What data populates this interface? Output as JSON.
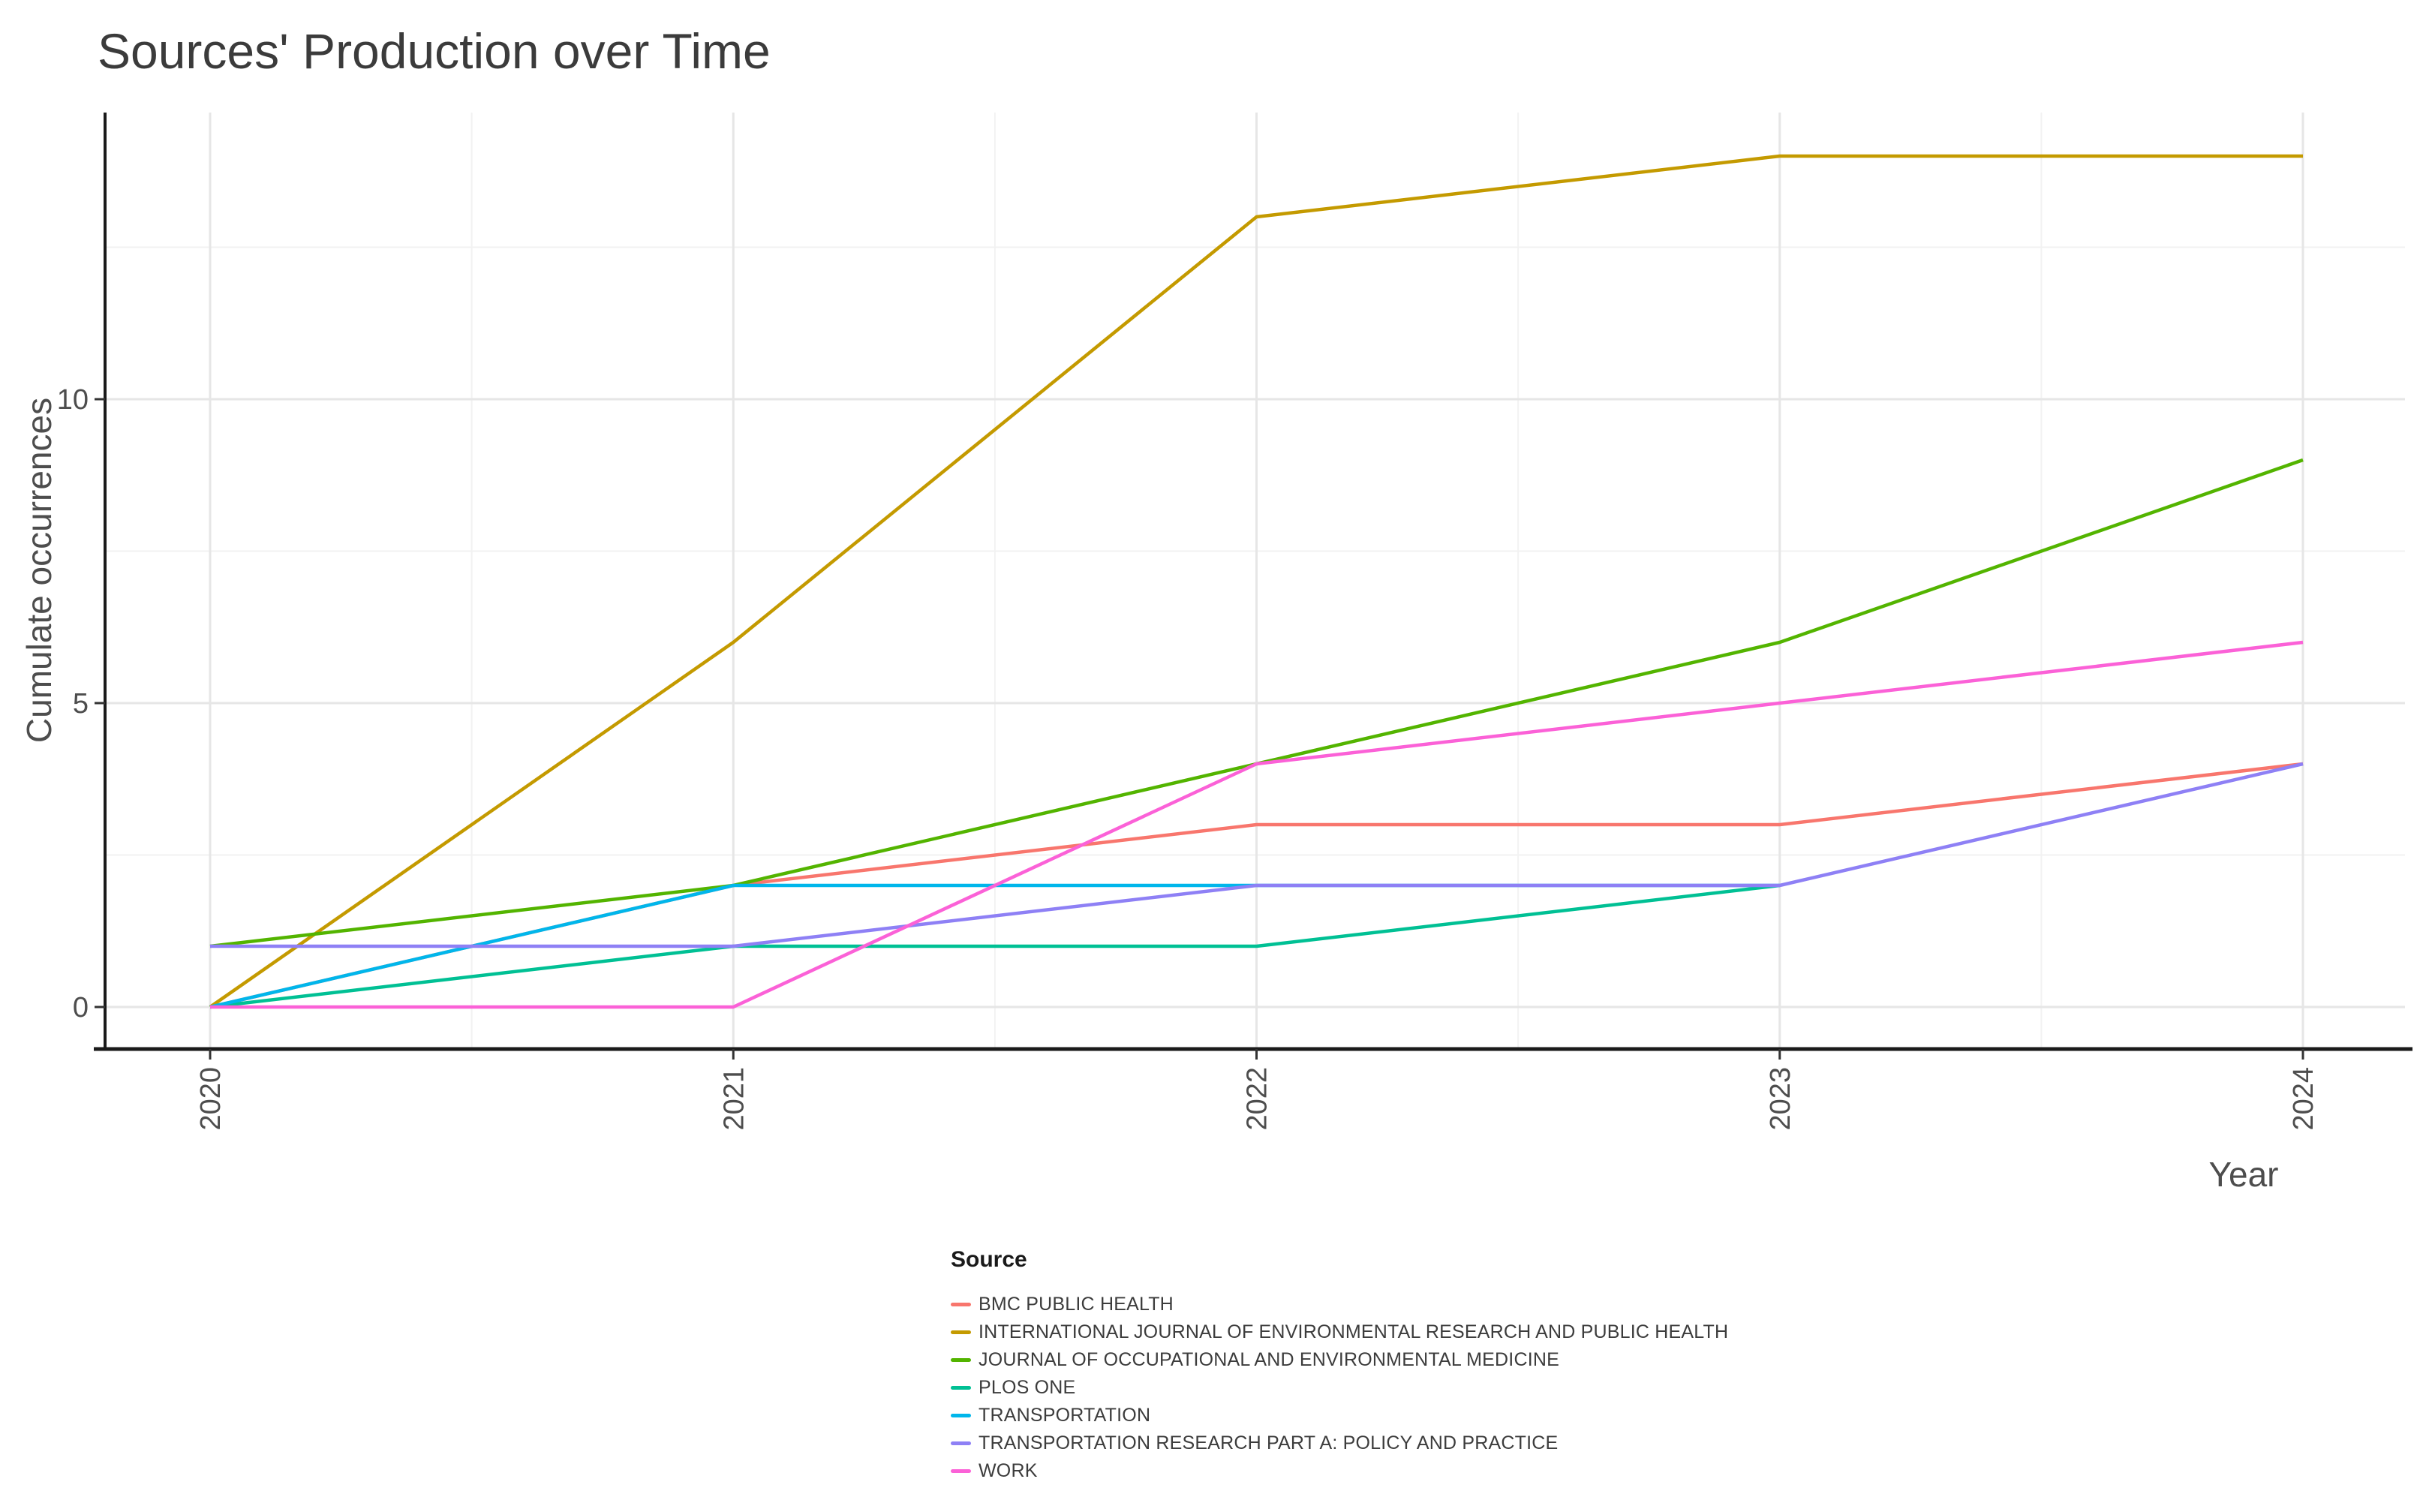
{
  "title": "Sources' Production over Time",
  "axes": {
    "x_label": "Year",
    "y_label": "Cumulate occurrences"
  },
  "legend": {
    "title": "Source"
  },
  "chart_data": {
    "type": "line",
    "title": "Sources' Production over Time",
    "xlabel": "Year",
    "ylabel": "Cumulate occurrences",
    "x": [
      2020,
      2021,
      2022,
      2023,
      2024
    ],
    "x_tick_labels": [
      "2020",
      "2021",
      "2022",
      "2023",
      "2024"
    ],
    "y_ticks": [
      0,
      5,
      10
    ],
    "y_minor_gridlines": [
      2.5,
      7.5,
      12.5
    ],
    "x_minor_gridlines": [
      2020.5,
      2021.5,
      2022.5,
      2023.5
    ],
    "xlim": [
      2019.8,
      2024.2
    ],
    "ylim": [
      0,
      14.7
    ],
    "grid": "on",
    "legend_position": "bottom",
    "series": [
      {
        "name": "BMC PUBLIC HEALTH",
        "color": "#F8766D",
        "values": [
          0,
          2,
          3,
          3,
          4
        ]
      },
      {
        "name": "INTERNATIONAL JOURNAL OF ENVIRONMENTAL RESEARCH AND PUBLIC HEALTH",
        "color": "#C49A00",
        "values": [
          0,
          6,
          13,
          14,
          14
        ]
      },
      {
        "name": "JOURNAL OF OCCUPATIONAL AND ENVIRONMENTAL MEDICINE",
        "color": "#53B400",
        "values": [
          1,
          2,
          4,
          6,
          9
        ]
      },
      {
        "name": "PLOS ONE",
        "color": "#00C094",
        "values": [
          0,
          1,
          1,
          2,
          null
        ]
      },
      {
        "name": "TRANSPORTATION",
        "color": "#00B6EB",
        "values": [
          0,
          2,
          2,
          2,
          null
        ]
      },
      {
        "name": "TRANSPORTATION RESEARCH PART A: POLICY AND PRACTICE",
        "color": "#8E80F5",
        "values": [
          1,
          1,
          2,
          2,
          4
        ]
      },
      {
        "name": "WORK",
        "color": "#FB61D7",
        "values": [
          0,
          0,
          4,
          5,
          6
        ]
      }
    ],
    "style": {
      "major_grid_color": "#e6e6e6",
      "minor_grid_color": "#f2f2f2",
      "axis_line_color": "#1a1a1a",
      "tick_label_color": "#4d4d4d"
    }
  }
}
